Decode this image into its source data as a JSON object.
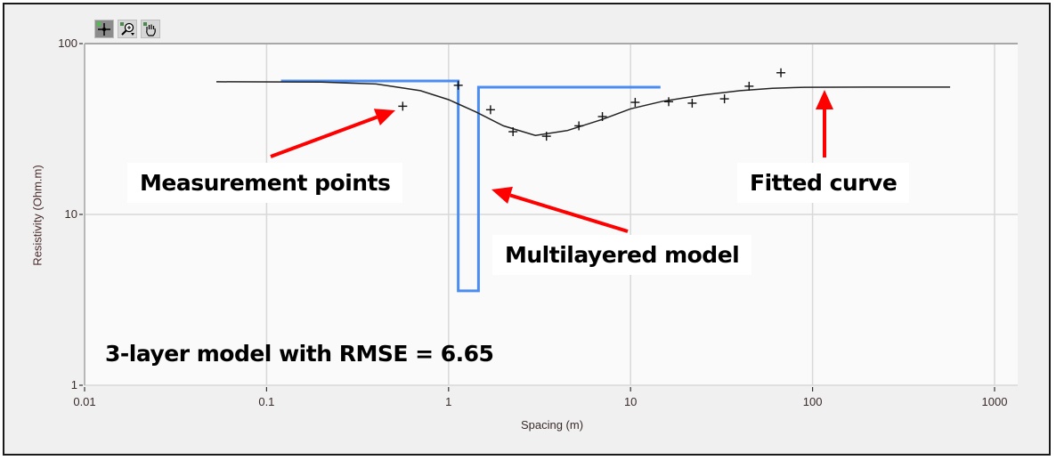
{
  "toolbar": {
    "buttons": [
      {
        "icon": "cursor-crosshair-icon",
        "active": true
      },
      {
        "icon": "zoom-magnifier-icon",
        "active": false
      },
      {
        "icon": "pan-hand-icon",
        "active": false
      }
    ]
  },
  "annotations": {
    "measurement_points": "Measurement points",
    "multilayered_model": "Multilayered model",
    "fitted_curve": "Fitted curve",
    "rmse_text": "3-layer model with RMSE = 6.65"
  },
  "colors": {
    "model": "#4a8cf0",
    "fitted_curve": "#222222",
    "points": "#111111",
    "arrows": "#ff0000",
    "grid": "#d8d8d8",
    "plot_bg": "#fafafa",
    "frame_bg": "#f0f0f0"
  },
  "chart_data": {
    "type": "line",
    "title": "",
    "xlabel": "Spacing (m)",
    "ylabel": "Resistivity (Ohm.m)",
    "xscale": "log",
    "yscale": "log",
    "xlim": [
      0.01,
      1000
    ],
    "ylim": [
      1,
      100
    ],
    "x_ticks": [
      "0.01",
      "0.1",
      "1",
      "10",
      "100",
      "1000"
    ],
    "y_ticks": [
      "1",
      "10",
      "100"
    ],
    "grid": true,
    "series": [
      {
        "name": "Measurement points",
        "style": "scatter-plus",
        "x": [
          0.56,
          1.13,
          1.7,
          2.26,
          3.45,
          5.2,
          7.0,
          10.6,
          16.2,
          21.8,
          32.8,
          44.8,
          67
        ],
        "y": [
          43,
          57,
          41,
          30.5,
          28.7,
          33,
          37.4,
          45.3,
          45.7,
          44.8,
          47.5,
          56.3,
          67.5
        ]
      },
      {
        "name": "Fitted curve",
        "style": "line",
        "x": [
          0.053,
          0.2,
          0.4,
          0.7,
          1.0,
          1.4,
          2.0,
          3.0,
          4.5,
          7.0,
          10,
          15,
          25,
          40,
          60,
          90,
          200,
          570
        ],
        "y": [
          59.8,
          59.5,
          58,
          53,
          47,
          40,
          33,
          29,
          31,
          36,
          41.5,
          46,
          50,
          53,
          54.8,
          55.5,
          55.6,
          55.6
        ]
      },
      {
        "name": "Multilayered model",
        "style": "step",
        "layers": [
          {
            "resistivity": 60.4,
            "from": 0.12,
            "to": 1.13
          },
          {
            "resistivity": 3.57,
            "from": 1.13,
            "to": 1.46
          },
          {
            "resistivity": 55.6,
            "from": 1.46,
            "to": 14.6
          }
        ]
      }
    ],
    "annotations": [
      "Measurement points",
      "Multilayered model",
      "Fitted curve",
      "3-layer model with RMSE = 6.65"
    ],
    "rmse": 6.65,
    "layers_count": 3
  }
}
